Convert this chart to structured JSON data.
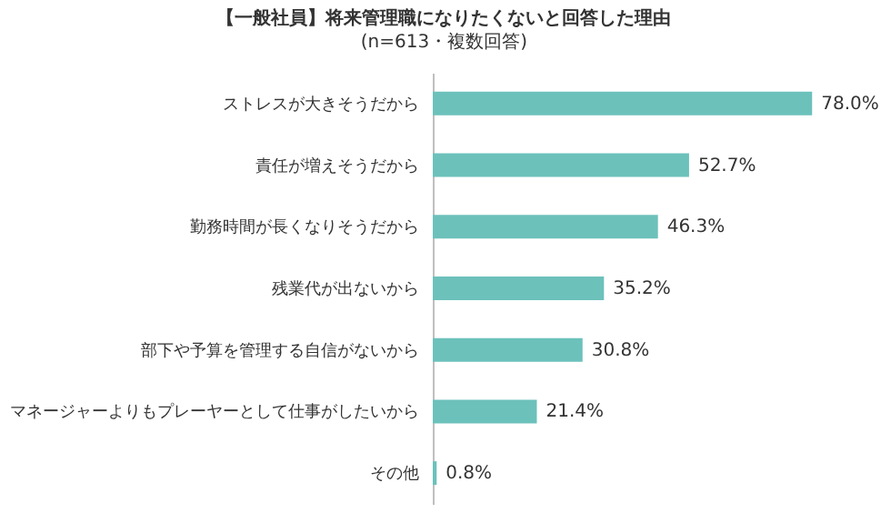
{
  "chart_data": {
    "type": "bar",
    "orientation": "horizontal",
    "title": "【一般社員】将来管理職になりたくないと回答した理由",
    "subtitle": "(n=613・複数回答)",
    "categories": [
      "ストレスが大きそうだから",
      "責任が増えそうだから",
      "勤務時間が長くなりそうだから",
      "残業代が出ないから",
      "部下や予算を管理する自信がないから",
      "マネージャーよりもプレーヤーとして仕事がしたいから",
      "その他"
    ],
    "values": [
      78.0,
      52.7,
      46.3,
      35.2,
      30.8,
      21.4,
      0.8
    ],
    "value_labels": [
      "78.0%",
      "52.7%",
      "46.3%",
      "35.2%",
      "30.8%",
      "21.4%",
      "0.8%"
    ],
    "color": "#6cc1bb",
    "grid": false
  }
}
